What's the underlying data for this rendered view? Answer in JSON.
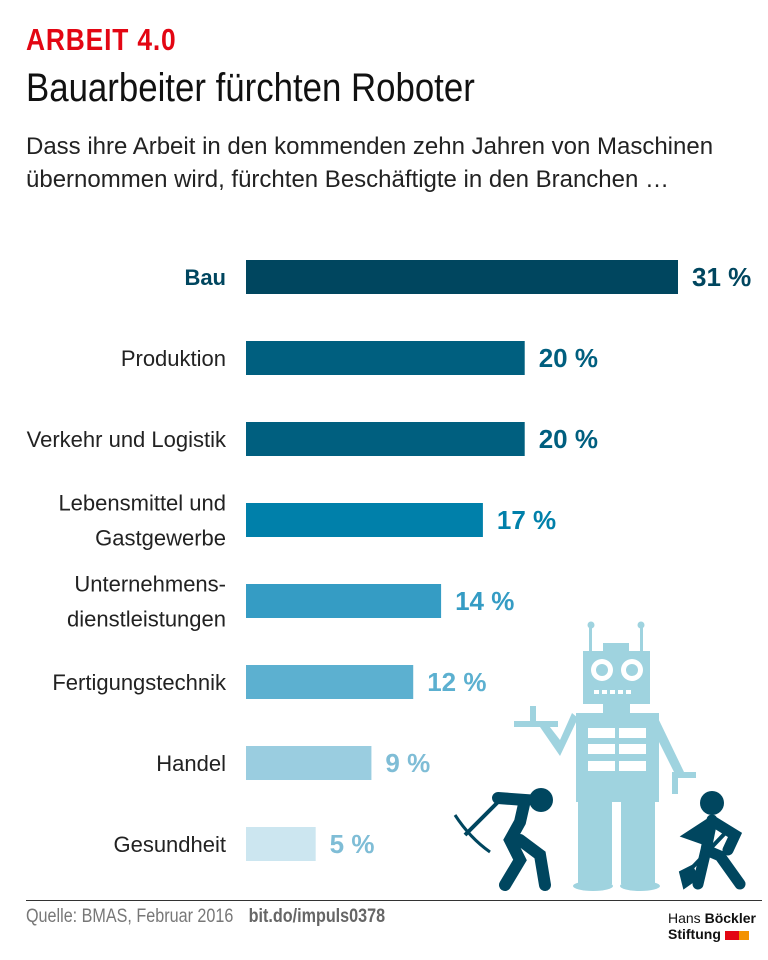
{
  "header": {
    "kicker": "ARBEIT 4.0",
    "title": "Bauarbeiter fürchten Roboter",
    "subtitle": "Dass ihre Arbeit in den kommenden zehn Jahren von Maschinen übernommen wird, fürchten Beschäftigte in den Branchen …"
  },
  "chart_data": {
    "type": "bar",
    "orientation": "horizontal",
    "categories": [
      [
        "Bau"
      ],
      [
        "Produktion"
      ],
      [
        "Verkehr und Logistik"
      ],
      [
        "Lebensmittel und",
        "Gastgewerbe"
      ],
      [
        "Unternehmens-",
        "dienstleistungen"
      ],
      [
        "Fertigungstechnik"
      ],
      [
        "Handel"
      ],
      [
        "Gesundheit"
      ]
    ],
    "values": [
      31,
      20,
      20,
      17,
      14,
      12,
      9,
      5
    ],
    "value_labels": [
      "31 %",
      "20 %",
      "20 %",
      "17 %",
      "14 %",
      "12 %",
      "9 %",
      "5 %"
    ],
    "unit": "%",
    "colors": [
      "#00465f",
      "#005f7f",
      "#005f7f",
      "#0080aa",
      "#359cc4",
      "#5cb0d0",
      "#9acde0",
      "#cce6f0"
    ],
    "highlight": "Bau",
    "grid": false
  },
  "footer": {
    "source": "Quelle:  BMAS, Februar 2016",
    "link": "bit.do/impuls0378",
    "logo_line1a": "Hans",
    "logo_line1b": "Böckler",
    "logo_line2": "Stiftung",
    "logo_colors": [
      "#e30613",
      "#f39200"
    ]
  }
}
